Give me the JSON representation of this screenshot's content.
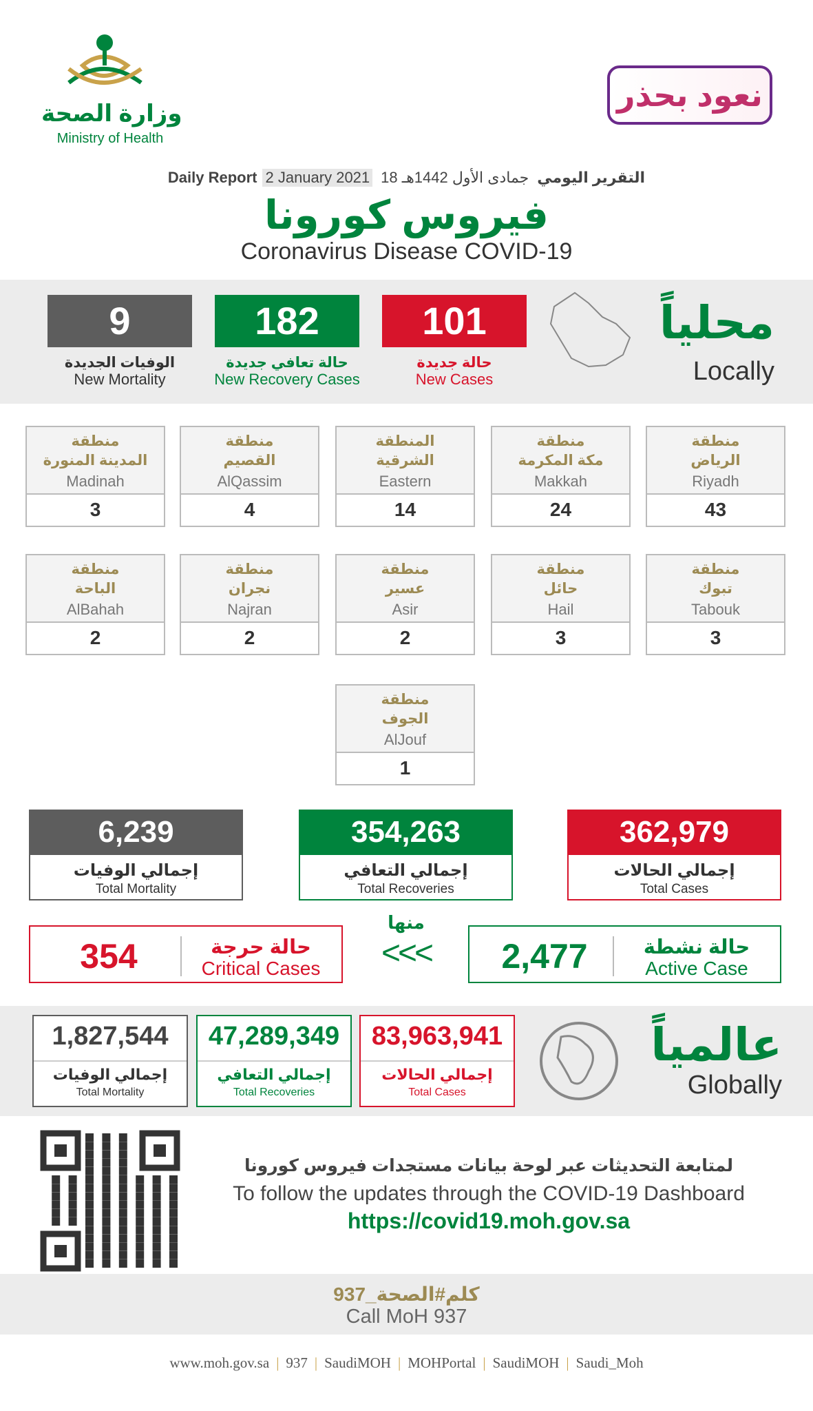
{
  "header": {
    "ministry_ar": "وزارة الصحة",
    "ministry_en": "Ministry of Health",
    "campaign": "نعود بحذر",
    "report_ar": "التقرير اليومي",
    "hijri_date": "18 جمادى الأول 1442هـ",
    "report_en": "Daily Report",
    "date": "2 January 2021",
    "title_ar": "فيروس كورونا",
    "title_en": "Coronavirus Disease COVID-19"
  },
  "local": {
    "title_ar": "محلياً",
    "title_en": "Locally",
    "stats": [
      {
        "value": "101",
        "label_ar": "حالة جديدة",
        "label_en": "New Cases",
        "color": "#d7142b"
      },
      {
        "value": "182",
        "label_ar": "حالة تعافي جديدة",
        "label_en": "New Recovery Cases",
        "color": "#00843d"
      },
      {
        "value": "9",
        "label_ar": "الوفيات الجديدة",
        "label_en": "New Mortality",
        "color": "#5d5d5d"
      }
    ]
  },
  "regions": [
    {
      "prefix": "منطقة",
      "name_ar": "الرياض",
      "name_en": "Riyadh",
      "value": "43"
    },
    {
      "prefix": "منطقة",
      "name_ar": "مكة المكرمة",
      "name_en": "Makkah",
      "value": "24"
    },
    {
      "prefix": "المنطقة",
      "name_ar": "الشرقية",
      "name_en": "Eastern",
      "value": "14"
    },
    {
      "prefix": "منطقة",
      "name_ar": "القصيم",
      "name_en": "AlQassim",
      "value": "4"
    },
    {
      "prefix": "منطقة",
      "name_ar": "المدينة المنورة",
      "name_en": "Madinah",
      "value": "3"
    },
    {
      "prefix": "منطقة",
      "name_ar": "تبوك",
      "name_en": "Tabouk",
      "value": "3"
    },
    {
      "prefix": "منطقة",
      "name_ar": "حائل",
      "name_en": "Hail",
      "value": "3"
    },
    {
      "prefix": "منطقة",
      "name_ar": "عسير",
      "name_en": "Asir",
      "value": "2"
    },
    {
      "prefix": "منطقة",
      "name_ar": "نجران",
      "name_en": "Najran",
      "value": "2"
    },
    {
      "prefix": "منطقة",
      "name_ar": "الباحة",
      "name_en": "AlBahah",
      "value": "2"
    },
    {
      "prefix": "منطقة",
      "name_ar": "الجوف",
      "name_en": "AlJouf",
      "value": "1"
    }
  ],
  "totals": [
    {
      "value": "362,979",
      "label_ar": "إجمالي الحالات",
      "label_en": "Total Cases",
      "color": "#d7142b"
    },
    {
      "value": "354,263",
      "label_ar": "إجمالي التعافي",
      "label_en": "Total Recoveries",
      "color": "#00843d"
    },
    {
      "value": "6,239",
      "label_ar": "إجمالي الوفيات",
      "label_en": "Total Mortality",
      "color": "#5d5d5d"
    }
  ],
  "active": {
    "label_ar": "حالة نشطة",
    "label_en": "Active Case",
    "value": "2,477"
  },
  "of_which": "منها",
  "arrows": "<<<",
  "critical": {
    "label_ar": "حالة حرجة",
    "label_en": "Critical Cases",
    "value": "354"
  },
  "global": {
    "title_ar": "عالمياً",
    "title_en": "Globally",
    "stats": [
      {
        "value": "83,963,941",
        "label_ar": "إجمالي الحالات",
        "label_en": "Total Cases",
        "color": "#d7142b"
      },
      {
        "value": "47,289,349",
        "label_ar": "إجمالي التعافي",
        "label_en": "Total Recoveries",
        "color": "#00843d"
      },
      {
        "value": "1,827,544",
        "label_ar": "إجمالي الوفيات",
        "label_en": "Total Mortality",
        "color": "#5d5d5d"
      }
    ]
  },
  "dashboard": {
    "text_ar": "لمتابعة التحديثات عبر لوحة بيانات مستجدات فيروس كورونا",
    "text_en": "To follow the updates through the COVID-19 Dashboard",
    "url": "https://covid19.moh.gov.sa"
  },
  "call": {
    "ar": "كلم#الصحة_937",
    "en": "Call MoH 937"
  },
  "footer": [
    "www.moh.gov.sa",
    "937",
    "SaudiMOH",
    "MOHPortal",
    "SaudiMOH",
    "Saudi_Moh"
  ]
}
